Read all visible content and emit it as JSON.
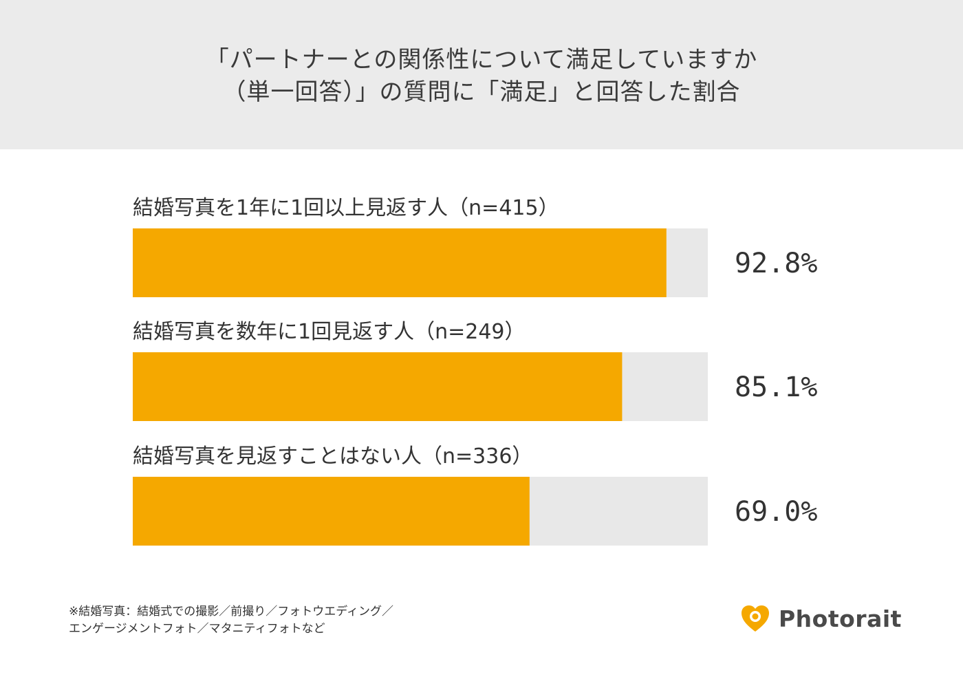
{
  "title": {
    "line1": "「パートナーとの関係性について満足していますか",
    "line2": "（単一回答）」の質問に「満足」と回答した割合"
  },
  "colors": {
    "bar": "#f5a800",
    "track": "#e8e8e8",
    "header_background": "#ebebeb"
  },
  "chart_data": {
    "type": "bar",
    "orientation": "horizontal",
    "categories": [
      "結婚写真を1年に1回以上見返す人（n=415）",
      "結婚写真を数年に1回見返す人（n=249）",
      "結婚写真を見返すことはない人（n=336）"
    ],
    "values": [
      92.8,
      85.1,
      69.0
    ],
    "value_labels": [
      "92.8%",
      "85.1%",
      "69.0%"
    ],
    "xlim": [
      0,
      100
    ],
    "grid": false,
    "legend": "none"
  },
  "footnote": {
    "line1": "※結婚写真：結婚式での撮影／前撮り／フォトウエディング／",
    "line2": "エンゲージメントフォト／マタニティフォトなど"
  },
  "logo": {
    "text": "Photorait",
    "icon": "heart-camera-icon"
  }
}
